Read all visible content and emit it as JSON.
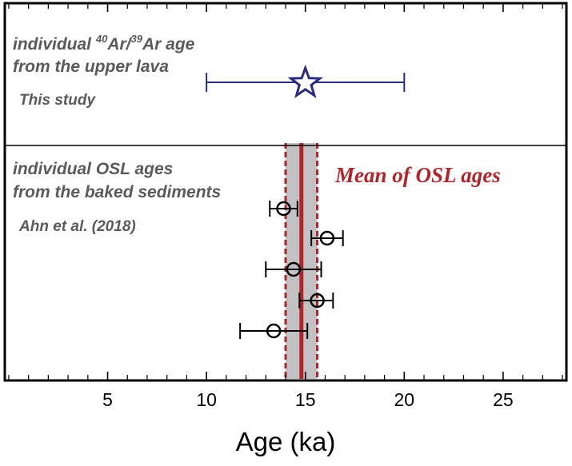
{
  "chart_data": {
    "type": "scatter",
    "xlabel": "Age (ka)",
    "xlim": [
      -0.2,
      28.2
    ],
    "xticks": [
      "5",
      "10",
      "15",
      "20",
      "25"
    ],
    "xtick_values": [
      5,
      10,
      15,
      20,
      25
    ],
    "minor_tick_step": 1,
    "upper_panel": {
      "line1_prefix": "individual ",
      "line1_sup1": "40",
      "line1_mid": "Ar/",
      "line1_sup2": "39",
      "line1_suffix": "Ar age",
      "line2": "from the upper lava",
      "source": "This study",
      "point": {
        "x": 15.0,
        "xerr_low": 10.0,
        "xerr_high": 20.0,
        "marker": "star"
      },
      "color": "#2b2a86"
    },
    "lower_panel": {
      "line1": "individual OSL ages",
      "line2": "from the baked sediments",
      "source": "Ahn et al. (2018)",
      "points": [
        {
          "x": 13.9,
          "xerr_low": 13.2,
          "xerr_high": 14.6
        },
        {
          "x": 16.1,
          "xerr_low": 15.3,
          "xerr_high": 16.9
        },
        {
          "x": 14.4,
          "xerr_low": 13.0,
          "xerr_high": 15.8
        },
        {
          "x": 15.6,
          "xerr_low": 14.7,
          "xerr_high": 16.4
        },
        {
          "x": 13.4,
          "xerr_low": 11.7,
          "xerr_high": 15.1
        }
      ],
      "color": "#000000"
    },
    "mean_band": {
      "label": "Mean of OSL ages",
      "mean": 14.8,
      "low": 14.0,
      "high": 15.6,
      "line_color": "#b3232a",
      "fill_color": "#c2c2c4"
    }
  }
}
